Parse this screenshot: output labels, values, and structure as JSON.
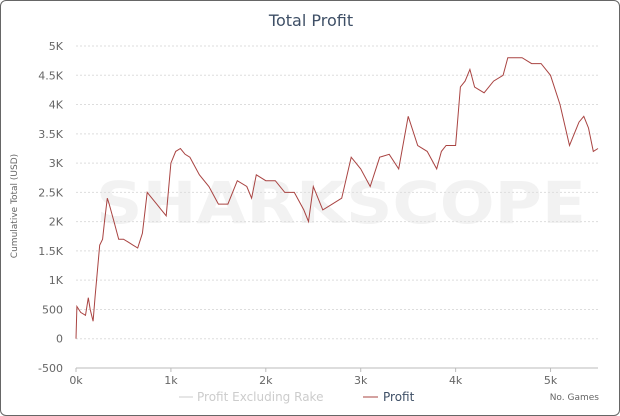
{
  "chart_data": {
    "type": "line",
    "title": "Total Profit",
    "xlabel": "No. Games",
    "ylabel": "Cumulative Total (USD)",
    "xlim": [
      0,
      5500
    ],
    "ylim": [
      -500,
      5000
    ],
    "x_ticks": [
      "0k",
      "1k",
      "2k",
      "3k",
      "4k",
      "5k"
    ],
    "y_ticks": [
      "-500",
      "0",
      "500",
      "1K",
      "1.5K",
      "2K",
      "2.5K",
      "3K",
      "3.5K",
      "4K",
      "4.5K",
      "5K"
    ],
    "grid": true,
    "legend": {
      "placement": "bottom",
      "entries": [
        {
          "name": "Profit Excluding Rake",
          "color": "#cccccc",
          "visible": false
        },
        {
          "name": "Profit",
          "color": "#a94442",
          "visible": true
        }
      ]
    },
    "watermark": "SHARKSCOPE",
    "series": [
      {
        "name": "Profit",
        "color": "#a94442",
        "x": [
          0,
          10,
          50,
          100,
          130,
          150,
          180,
          200,
          250,
          280,
          300,
          330,
          350,
          400,
          450,
          500,
          550,
          600,
          650,
          700,
          750,
          800,
          850,
          900,
          950,
          1000,
          1050,
          1100,
          1150,
          1200,
          1300,
          1400,
          1500,
          1600,
          1700,
          1800,
          1850,
          1900,
          2000,
          2100,
          2200,
          2300,
          2400,
          2450,
          2500,
          2600,
          2700,
          2800,
          2900,
          3000,
          3100,
          3200,
          3300,
          3400,
          3500,
          3600,
          3700,
          3800,
          3850,
          3900,
          4000,
          4050,
          4100,
          4150,
          4200,
          4300,
          4400,
          4500,
          4550,
          4600,
          4700,
          4800,
          4900,
          5000,
          5100,
          5200,
          5300,
          5350,
          5400,
          5450,
          5500
        ],
        "y": [
          0,
          550,
          450,
          400,
          700,
          500,
          300,
          700,
          1600,
          1700,
          2000,
          2400,
          2300,
          2000,
          1700,
          1700,
          1650,
          1600,
          1550,
          1800,
          2500,
          2400,
          2300,
          2200,
          2100,
          3000,
          3200,
          3250,
          3150,
          3100,
          2800,
          2600,
          2300,
          2300,
          2700,
          2600,
          2400,
          2800,
          2700,
          2700,
          2500,
          2500,
          2200,
          2000,
          2600,
          2200,
          2300,
          2400,
          3100,
          2900,
          2600,
          3100,
          3150,
          2900,
          3800,
          3300,
          3200,
          2900,
          3200,
          3300,
          3300,
          4300,
          4400,
          4600,
          4300,
          4200,
          4400,
          4500,
          4800,
          4800,
          4800,
          4700,
          4700,
          4500,
          4000,
          3300,
          3700,
          3800,
          3600,
          3200,
          3250
        ]
      }
    ]
  }
}
